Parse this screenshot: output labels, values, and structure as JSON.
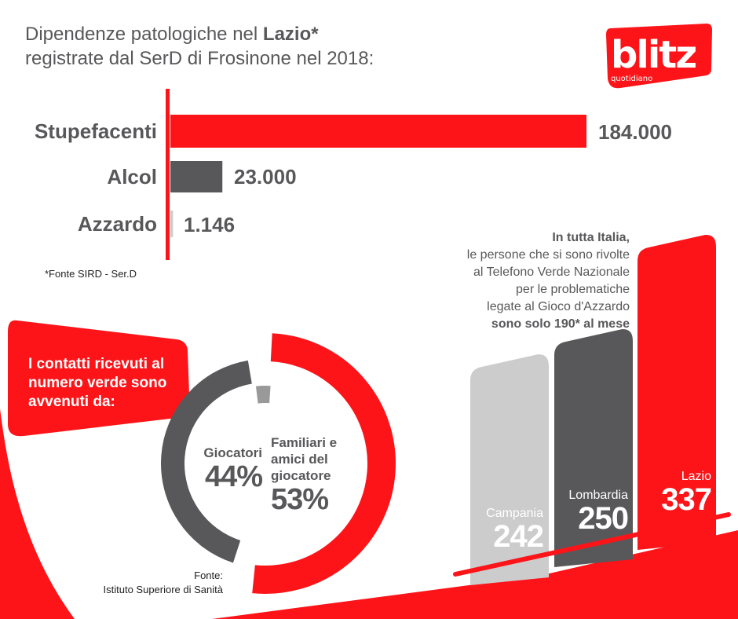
{
  "colors": {
    "red": "#fc1419",
    "dark": "#58585a",
    "light": "#cccccc",
    "mid": "#999999"
  },
  "logo": {
    "text": "blitz",
    "subtext": "quotidiano"
  },
  "header": {
    "line1_prefix": "Dipendenze patologiche nel ",
    "line1_bold": "Lazio*",
    "line2": "registrate dal SerD di Frosinone nel 2018:"
  },
  "chart_data": [
    {
      "type": "bar",
      "orientation": "horizontal",
      "categories": [
        "Stupefacenti",
        "Alcol",
        "Azzardo"
      ],
      "values": [
        184000,
        23000,
        1146
      ],
      "value_labels": [
        "184.000",
        "23.000",
        "1.146"
      ],
      "colors": [
        "#fc1419",
        "#58585a",
        "#cccccc"
      ],
      "source": "*Fonte SIRD - Ser.D"
    },
    {
      "type": "pie",
      "style": "donut",
      "title": "I contatti ricevuti al numero verde sono avvenuti da:",
      "slices": [
        {
          "label": "Familiari e amici del giocatore",
          "value": 53,
          "value_label": "53%",
          "color": "#fc1419"
        },
        {
          "label": "Giocatori",
          "value": 44,
          "value_label": "44%",
          "color": "#58585a"
        },
        {
          "label": "",
          "value": 3,
          "color": "#999999"
        }
      ],
      "source_label": "Fonte:",
      "source": "Istituto Superiore di Sanità"
    },
    {
      "type": "bar",
      "categories": [
        "Campania",
        "Lombardia",
        "Lazio"
      ],
      "values": [
        242,
        250,
        337
      ],
      "value_labels": [
        "242",
        "250",
        "337"
      ],
      "colors": [
        "#cccccc",
        "#58585a",
        "#fc1419"
      ]
    }
  ],
  "note": {
    "bold1": "In tutta Italia,",
    "l2": "le persone che si sono rivolte",
    "l3": "al Telefono Verde Nazionale",
    "l4": "per le problematiche",
    "l5": "legate al Gioco d'Azzardo",
    "bold2": "sono solo 190* al mese"
  }
}
